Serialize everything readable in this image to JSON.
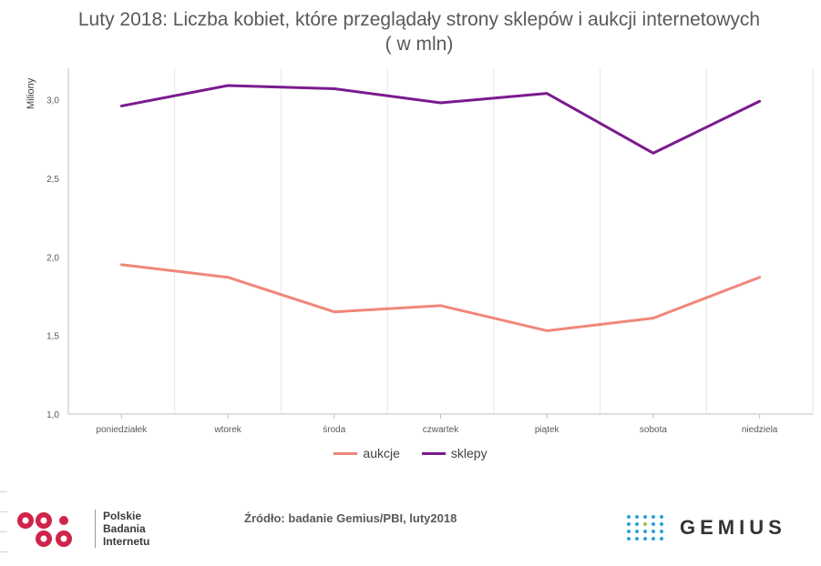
{
  "chart_data": {
    "type": "line",
    "title": "Luty 2018: Liczba kobiet, które przeglądały strony sklepów i aukcji internetowych ( w mln)",
    "ylabel": "Miliony",
    "xlabel": "",
    "ylim": [
      1.0,
      3.2
    ],
    "yticks": [
      1.0,
      1.5,
      2.0,
      2.5,
      3.0
    ],
    "ytick_labels": [
      "1,0",
      "1,5",
      "2,0",
      "2,5",
      "3,0"
    ],
    "categories": [
      "poniedziałek",
      "wtorek",
      "środa",
      "czwartek",
      "piątek",
      "sobota",
      "niedziela"
    ],
    "grid": "vertical",
    "legend_position": "bottom",
    "series": [
      {
        "name": "aukcje",
        "color": "#f0877a",
        "values": [
          1.95,
          1.87,
          1.65,
          1.69,
          1.53,
          1.61,
          1.87
        ]
      },
      {
        "name": "sklepy",
        "color": "#7b1a8e",
        "values": [
          2.96,
          3.09,
          3.07,
          2.98,
          3.04,
          2.66,
          2.99
        ]
      }
    ]
  },
  "footer": {
    "source": "Źródło: badanie Gemius/PBI, luty2018",
    "pbi_lines": [
      "Polskie",
      "Badania",
      "Internetu"
    ],
    "gemius": "GEMIUS",
    "pbi_color": "#d0234a",
    "gemius_color": "#29a3d8"
  }
}
